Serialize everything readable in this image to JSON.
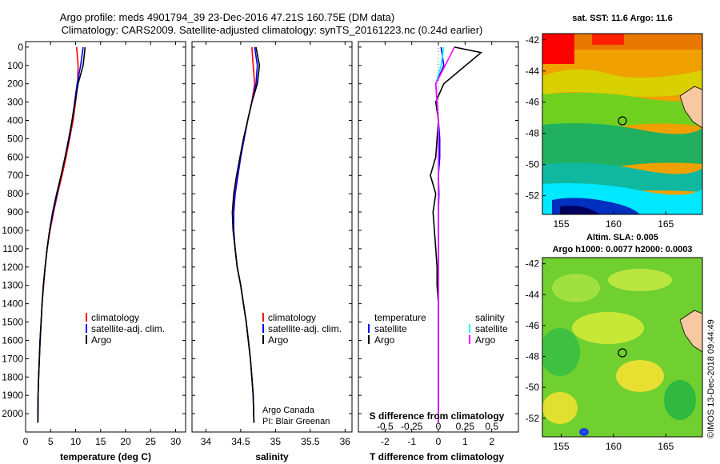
{
  "header": {
    "title_line1": "Argo profile: meds 4901794_39 23-Dec-2016 47.21S 160.75E (DM data)",
    "title_line2": "Climatology: CARS2009. Satellite-adjusted climatology: synTS_20161223.nc (0.24d earlier)"
  },
  "credit": {
    "line1": "Argo Canada",
    "line2": "PI: Blair Greenan"
  },
  "watermark": "©IMOS 13-Dec-2018 09:44:49",
  "colors": {
    "climatology": "#ff0000",
    "satellite": "#0000ff",
    "argo": "#000000",
    "salinity_satellite": "#00ffff",
    "salinity_argo": "#ff00ff"
  },
  "chart_data": [
    {
      "type": "line",
      "id": "temperature",
      "xlabel": "temperature (deg C)",
      "ylabel": "",
      "xlim": [
        0,
        32
      ],
      "ylim": [
        2100,
        -30
      ],
      "xticks": [
        0,
        5,
        10,
        15,
        20,
        25,
        30
      ],
      "yticks": [
        0,
        100,
        200,
        300,
        400,
        500,
        600,
        700,
        800,
        900,
        1000,
        1100,
        1200,
        1300,
        1400,
        1500,
        1600,
        1700,
        1800,
        1900,
        2000
      ],
      "legend": [
        "climatology",
        "satellite-adj. clim.",
        "Argo"
      ],
      "series": [
        {
          "name": "climatology",
          "color": "#ff0000",
          "x": [
            10.2,
            10.5,
            10.4,
            10.0,
            9.5,
            8.8,
            8.1,
            7.3,
            6.4,
            5.6,
            4.9,
            4.3,
            3.9,
            3.6,
            3.3,
            3.1,
            2.9,
            2.75,
            2.6,
            2.5,
            2.45
          ],
          "y": [
            0,
            100,
            200,
            300,
            400,
            500,
            600,
            700,
            800,
            900,
            1000,
            1100,
            1200,
            1300,
            1400,
            1500,
            1600,
            1700,
            1800,
            1900,
            2050
          ]
        },
        {
          "name": "satellite-adj. clim.",
          "color": "#0000ff",
          "x": [
            11.5,
            11.0,
            10.3,
            9.8,
            9.3,
            8.6,
            7.9,
            7.1,
            6.3,
            5.5,
            4.8,
            4.3,
            3.9,
            3.55,
            3.3,
            3.1,
            2.9,
            2.75,
            2.6,
            2.5,
            2.45
          ],
          "y": [
            0,
            100,
            200,
            300,
            400,
            500,
            600,
            700,
            800,
            900,
            1000,
            1100,
            1200,
            1300,
            1400,
            1500,
            1600,
            1700,
            1800,
            1900,
            2050
          ]
        },
        {
          "name": "Argo",
          "color": "#000000",
          "x": [
            11.9,
            11.5,
            10.5,
            9.9,
            9.3,
            8.7,
            7.9,
            7.1,
            6.2,
            5.4,
            4.8,
            4.3,
            3.9,
            3.55,
            3.3,
            3.1,
            2.9,
            2.75,
            2.6,
            2.5,
            2.45
          ],
          "y": [
            0,
            100,
            200,
            300,
            400,
            500,
            600,
            700,
            800,
            900,
            1000,
            1100,
            1200,
            1300,
            1400,
            1500,
            1600,
            1700,
            1800,
            1900,
            2050
          ]
        }
      ]
    },
    {
      "type": "line",
      "id": "salinity",
      "xlabel": "salinity",
      "ylabel": "",
      "xlim": [
        33.8,
        36.1
      ],
      "ylim": [
        2100,
        -30
      ],
      "xticks": [
        34,
        34.5,
        35,
        35.5,
        36
      ],
      "legend": [
        "climatology",
        "satellite-adj. clim.",
        "Argo"
      ],
      "series": [
        {
          "name": "climatology",
          "color": "#ff0000",
          "x": [
            34.66,
            34.68,
            34.7,
            34.66,
            34.6,
            34.55,
            34.5,
            34.46,
            34.42,
            34.4,
            34.4,
            34.42,
            34.45,
            34.5,
            34.54,
            34.58,
            34.61,
            34.64,
            34.66,
            34.68,
            34.69
          ],
          "y": [
            0,
            100,
            200,
            300,
            400,
            500,
            600,
            700,
            800,
            900,
            1000,
            1100,
            1200,
            1300,
            1400,
            1500,
            1600,
            1700,
            1800,
            1900,
            2050
          ]
        },
        {
          "name": "satellite-adj. clim.",
          "color": "#0000ff",
          "x": [
            34.7,
            34.74,
            34.72,
            34.66,
            34.6,
            34.55,
            34.5,
            34.46,
            34.42,
            34.4,
            34.4,
            34.42,
            34.45,
            34.5,
            34.54,
            34.58,
            34.61,
            34.64,
            34.66,
            34.68,
            34.69
          ],
          "y": [
            0,
            100,
            200,
            300,
            400,
            500,
            600,
            700,
            800,
            900,
            1000,
            1100,
            1200,
            1300,
            1400,
            1500,
            1600,
            1700,
            1800,
            1900,
            2050
          ]
        },
        {
          "name": "Argo",
          "color": "#000000",
          "x": [
            34.72,
            34.77,
            34.74,
            34.66,
            34.6,
            34.54,
            34.49,
            34.44,
            34.4,
            34.38,
            34.39,
            34.42,
            34.45,
            34.5,
            34.54,
            34.58,
            34.61,
            34.64,
            34.66,
            34.68,
            34.69
          ],
          "y": [
            0,
            100,
            200,
            300,
            400,
            500,
            600,
            700,
            800,
            900,
            1000,
            1100,
            1200,
            1300,
            1400,
            1500,
            1600,
            1700,
            1800,
            1900,
            2050
          ]
        }
      ]
    },
    {
      "type": "line",
      "id": "difference",
      "xlabel": "T difference from climatology",
      "xlabel2": "S difference from climatology",
      "xlim": [
        -3,
        3
      ],
      "ylim": [
        2100,
        -30
      ],
      "xticks": [
        -2,
        -1,
        0,
        1,
        2
      ],
      "xticks2": [
        "-0.5",
        "-0.25",
        "0",
        "0.25",
        "0.5"
      ],
      "legend_left_title": "temperature",
      "legend_right_title": "salinity",
      "legend_left": [
        "satellite",
        "Argo"
      ],
      "legend_right": [
        "satellite",
        "Argo"
      ],
      "series": [
        {
          "name": "T satellite",
          "color": "#0000ff",
          "x": [
            0.1,
            0.2,
            -0.1,
            -0.05,
            0.0,
            0.05,
            0.05,
            0.0,
            0.02,
            0.0,
            0.0,
            0.0,
            0.0,
            0.0,
            0.0,
            0.0,
            0.0,
            0.0,
            0.0,
            0.0,
            0.0
          ],
          "y": [
            0,
            100,
            200,
            300,
            400,
            500,
            600,
            700,
            800,
            900,
            1000,
            1100,
            1200,
            1300,
            1400,
            1500,
            1600,
            1700,
            1800,
            1900,
            2050
          ]
        },
        {
          "name": "T Argo",
          "color": "#000000",
          "x": [
            0.6,
            1.6,
            0.2,
            -0.1,
            0.0,
            -0.05,
            -0.1,
            -0.3,
            -0.1,
            -0.2,
            -0.15,
            -0.1,
            -0.05,
            -0.05,
            0.0,
            0.0,
            0.0,
            0.0,
            0.0,
            0.0,
            0.0
          ],
          "y": [
            0,
            30,
            200,
            300,
            400,
            500,
            600,
            700,
            800,
            900,
            1000,
            1100,
            1200,
            1300,
            1400,
            1500,
            1600,
            1700,
            1800,
            1900,
            2050
          ]
        },
        {
          "name": "S satellite",
          "color": "#00ffff",
          "x": [
            0.2,
            0.1,
            -0.1,
            -0.05,
            0.0,
            0.0,
            0.0,
            0.0,
            0.0,
            0.0,
            0.0,
            0.0,
            0.0,
            0.0,
            0.0,
            0.0,
            0.0,
            0.0,
            0.0,
            0.0,
            0.0
          ],
          "y": [
            0,
            100,
            200,
            300,
            400,
            500,
            600,
            700,
            800,
            900,
            1000,
            1100,
            1200,
            1300,
            1400,
            1500,
            1600,
            1700,
            1800,
            1900,
            2050
          ]
        },
        {
          "name": "S Argo",
          "color": "#ff00ff",
          "x": [
            0.6,
            0.5,
            -0.1,
            -0.05,
            0.0,
            0.0,
            0.0,
            0.0,
            0.0,
            0.0,
            0.0,
            0.0,
            0.0,
            0.0,
            0.0,
            0.0,
            0.0,
            0.0,
            0.0,
            0.0,
            0.0
          ],
          "y": [
            0,
            30,
            200,
            300,
            400,
            500,
            600,
            700,
            800,
            900,
            1000,
            1100,
            1200,
            1300,
            1400,
            1500,
            1600,
            1700,
            1800,
            1900,
            2050
          ]
        }
      ]
    },
    {
      "type": "heatmap",
      "id": "sst_map",
      "title": "sat. SST: 11.6 Argo: 11.6",
      "xticks": [
        155,
        160,
        165
      ],
      "yticks": [
        -42,
        -44,
        -46,
        -48,
        -50,
        -52
      ],
      "xlim": [
        153.2,
        168.5
      ],
      "ylim": [
        -53.2,
        -41.6
      ],
      "marker": {
        "lon": 160.75,
        "lat": -47.21
      }
    },
    {
      "type": "heatmap",
      "id": "sla_map",
      "title": "Altim. SLA: 0.005",
      "subtitle": "Argo h1000: 0.0077 h2000: 0.0003",
      "xticks": [
        155,
        160,
        165
      ],
      "yticks": [
        -42,
        -44,
        -46,
        -48,
        -50,
        -52
      ],
      "xlim": [
        153.2,
        168.5
      ],
      "ylim": [
        -53.2,
        -41.6
      ],
      "marker": {
        "lon": 160.75,
        "lat": -47.21
      }
    }
  ]
}
